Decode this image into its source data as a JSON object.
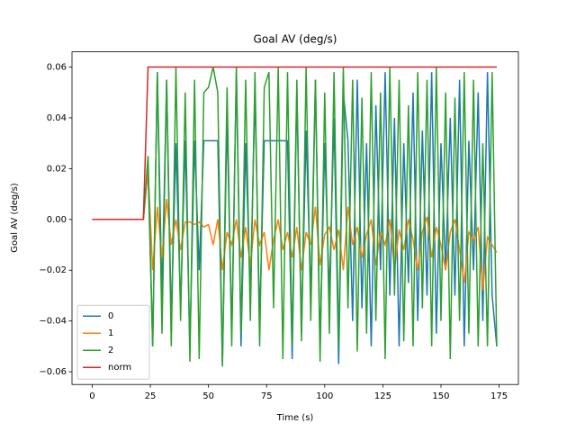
{
  "chart_data": {
    "type": "line",
    "title": "Goal AV (deg/s)",
    "x_label": "Time (s)",
    "y_label": "Goal AV (deg/s)",
    "x": [
      0,
      2,
      4,
      6,
      8,
      10,
      12,
      14,
      16,
      18,
      20,
      22,
      24,
      26,
      28,
      30,
      32,
      34,
      36,
      38,
      40,
      42,
      44,
      46,
      48,
      50,
      52,
      54,
      56,
      58,
      60,
      62,
      64,
      66,
      68,
      70,
      72,
      74,
      76,
      78,
      80,
      82,
      84,
      86,
      88,
      90,
      92,
      94,
      96,
      98,
      100,
      102,
      104,
      106,
      108,
      110,
      112,
      114,
      116,
      118,
      120,
      122,
      124,
      126,
      128,
      130,
      132,
      134,
      136,
      138,
      140,
      142,
      144,
      146,
      148,
      150,
      152,
      154,
      156,
      158,
      160,
      162,
      164,
      166,
      168,
      170,
      172,
      174
    ],
    "series": [
      {
        "name": "0",
        "color": "#1f77b4",
        "values": [
          0,
          0,
          0,
          0,
          0,
          0,
          0,
          0,
          0,
          0,
          0,
          0,
          0.02,
          -0.05,
          0.058,
          -0.03,
          0.055,
          -0.04,
          0.03,
          -0.035,
          0.031,
          -0.05,
          0.031,
          -0.02,
          0.031,
          0.031,
          0.031,
          0.031,
          -0.057,
          0.04,
          -0.045,
          0.058,
          -0.05,
          0.03,
          -0.03,
          0.05,
          -0.04,
          0.031,
          0.031,
          0.031,
          0.031,
          0.031,
          0.031,
          -0.055,
          0.05,
          -0.045,
          0.035,
          -0.03,
          0.055,
          -0.05,
          0.03,
          -0.03,
          0.04,
          -0.057,
          0.05,
          0.031,
          -0.04,
          0.055,
          -0.035,
          0.03,
          -0.05,
          0.045,
          -0.02,
          0.058,
          -0.03,
          0.04,
          -0.05,
          0.03,
          -0.025,
          0.05,
          -0.04,
          0.035,
          -0.03,
          0.058,
          -0.045,
          0.03,
          -0.02,
          0.04,
          -0.03,
          0.055,
          -0.05,
          0.031,
          -0.02,
          0.05,
          -0.04,
          0.058,
          -0.03,
          -0.05
        ]
      },
      {
        "name": "1",
        "color": "#ff7f0e",
        "values": [
          0,
          0,
          0,
          0,
          0,
          0,
          0,
          0,
          0,
          0,
          0,
          0,
          0.02,
          -0.02,
          0.005,
          -0.015,
          0.008,
          -0.01,
          0.0,
          -0.012,
          -0.001,
          -0.001,
          -0.002,
          -0.001,
          -0.003,
          -0.002,
          -0.01,
          0.0,
          -0.02,
          -0.005,
          -0.01,
          0.0,
          -0.015,
          -0.003,
          -0.018,
          0.0,
          -0.01,
          -0.005,
          -0.02,
          -0.008,
          0.0,
          -0.012,
          -0.005,
          -0.015,
          -0.003,
          -0.02,
          -0.005,
          -0.01,
          0.005,
          -0.018,
          -0.006,
          -0.003,
          -0.012,
          -0.004,
          -0.02,
          0.005,
          -0.01,
          -0.003,
          -0.015,
          -0.006,
          0.0,
          -0.018,
          -0.005,
          -0.01,
          0.0,
          -0.02,
          -0.004,
          -0.012,
          0.0,
          -0.008,
          -0.02,
          -0.005,
          0.001,
          -0.015,
          -0.003,
          -0.01,
          -0.02,
          -0.005,
          0.0,
          -0.012,
          -0.025,
          -0.005,
          -0.008,
          -0.003,
          -0.028,
          -0.007,
          -0.01,
          -0.013
        ]
      },
      {
        "name": "2",
        "color": "#2ca02c",
        "values": [
          0,
          0,
          0,
          0,
          0,
          0,
          0,
          0,
          0,
          0,
          0,
          0,
          0.025,
          -0.05,
          0.058,
          -0.045,
          0.055,
          -0.05,
          0.06,
          -0.04,
          0.05,
          -0.056,
          0.055,
          -0.055,
          0.05,
          0.052,
          0.06,
          0.05,
          -0.058,
          0.052,
          -0.05,
          0.06,
          -0.045,
          0.055,
          -0.04,
          0.058,
          -0.05,
          0.052,
          0.058,
          -0.035,
          0.06,
          -0.055,
          0.058,
          -0.05,
          0.055,
          -0.048,
          0.06,
          -0.04,
          0.055,
          -0.056,
          0.05,
          -0.045,
          0.058,
          -0.05,
          0.06,
          -0.035,
          0.055,
          -0.052,
          0.048,
          -0.045,
          0.058,
          -0.04,
          0.05,
          -0.055,
          0.06,
          -0.03,
          0.055,
          -0.048,
          0.045,
          -0.05,
          0.058,
          -0.035,
          0.055,
          -0.05,
          0.06,
          -0.04,
          0.05,
          -0.055,
          0.048,
          -0.04,
          0.058,
          -0.045,
          0.055,
          -0.05,
          0.03,
          -0.05,
          0.058,
          -0.05
        ]
      },
      {
        "name": "norm",
        "color": "#d62728",
        "values": [
          0,
          0,
          0,
          0,
          0,
          0,
          0,
          0,
          0,
          0,
          0,
          0,
          0.06,
          0.06,
          0.06,
          0.06,
          0.06,
          0.06,
          0.06,
          0.06,
          0.06,
          0.06,
          0.06,
          0.06,
          0.06,
          0.06,
          0.06,
          0.06,
          0.06,
          0.06,
          0.06,
          0.06,
          0.06,
          0.06,
          0.06,
          0.06,
          0.06,
          0.06,
          0.06,
          0.06,
          0.06,
          0.06,
          0.06,
          0.06,
          0.06,
          0.06,
          0.06,
          0.06,
          0.06,
          0.06,
          0.06,
          0.06,
          0.06,
          0.06,
          0.06,
          0.06,
          0.06,
          0.06,
          0.06,
          0.06,
          0.06,
          0.06,
          0.06,
          0.06,
          0.06,
          0.06,
          0.06,
          0.06,
          0.06,
          0.06,
          0.06,
          0.06,
          0.06,
          0.06,
          0.06,
          0.06,
          0.06,
          0.06,
          0.06,
          0.06,
          0.06,
          0.06,
          0.06,
          0.06,
          0.06,
          0.06,
          0.06,
          0.06
        ]
      }
    ],
    "xlim": [
      -8.7,
      183.3
    ],
    "xticks": [
      0,
      25,
      50,
      75,
      100,
      125,
      150,
      175
    ],
    "ylim": [
      -0.065,
      0.066
    ],
    "yticks": [
      {
        "value": -0.06,
        "label": "−0.06"
      },
      {
        "value": -0.04,
        "label": "−0.04"
      },
      {
        "value": -0.02,
        "label": "−0.02"
      },
      {
        "value": 0,
        "label": "0.00"
      },
      {
        "value": 0.02,
        "label": "0.02"
      },
      {
        "value": 0.04,
        "label": "0.04"
      },
      {
        "value": 0.06,
        "label": "0.06"
      }
    ],
    "legend": "lower left"
  }
}
